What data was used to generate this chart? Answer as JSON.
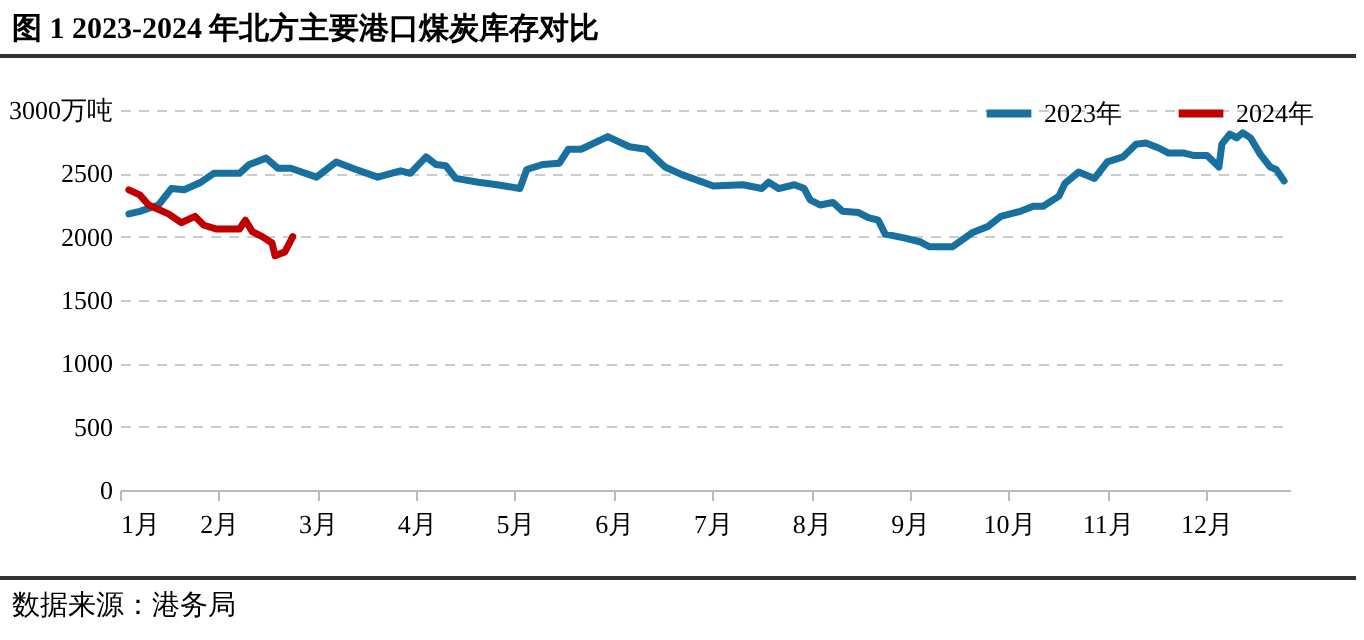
{
  "chart_data": {
    "type": "line",
    "title": "图 1 2023-2024 年北方主要港口煤炭库存对比",
    "annotations": [
      "数据来源：港务局"
    ],
    "series": [
      {
        "name": "2023年",
        "color": "#17709e",
        "x": [
          1.09,
          1.2,
          1.39,
          1.52,
          1.65,
          1.82,
          1.95,
          2.21,
          2.31,
          2.48,
          2.6,
          2.73,
          2.99,
          3.19,
          3.39,
          3.61,
          3.84,
          3.94,
          4.1,
          4.2,
          4.3,
          4.4,
          4.63,
          4.82,
          5.05,
          5.12,
          5.28,
          5.45,
          5.54,
          5.67,
          5.94,
          6.16,
          6.33,
          6.52,
          6.69,
          7.01,
          7.31,
          7.5,
          7.57,
          7.67,
          7.83,
          7.93,
          7.99,
          8.09,
          8.22,
          8.32,
          8.48,
          8.58,
          8.68,
          8.75,
          8.94,
          9.1,
          9.2,
          9.43,
          9.63,
          9.79,
          9.92,
          10.12,
          10.25,
          10.35,
          10.51,
          10.57,
          10.71,
          10.87,
          11.0,
          11.16,
          11.29,
          11.39,
          11.52,
          11.62,
          11.78,
          11.88,
          12.01,
          12.13,
          12.16,
          12.24,
          12.31,
          12.37,
          12.45,
          12.55,
          12.65,
          12.71,
          12.79
        ],
        "values": [
          2180,
          2200,
          2250,
          2380,
          2370,
          2430,
          2500,
          2500,
          2570,
          2620,
          2540,
          2540,
          2470,
          2590,
          2530,
          2470,
          2520,
          2500,
          2630,
          2570,
          2560,
          2460,
          2430,
          2410,
          2380,
          2530,
          2570,
          2580,
          2690,
          2690,
          2790,
          2710,
          2690,
          2550,
          2490,
          2400,
          2410,
          2380,
          2430,
          2380,
          2410,
          2380,
          2290,
          2250,
          2270,
          2200,
          2190,
          2150,
          2130,
          2020,
          1990,
          1960,
          1920,
          1920,
          2030,
          2080,
          2160,
          2200,
          2240,
          2240,
          2320,
          2420,
          2510,
          2460,
          2590,
          2630,
          2730,
          2740,
          2700,
          2660,
          2660,
          2640,
          2640,
          2550,
          2730,
          2810,
          2780,
          2820,
          2780,
          2650,
          2550,
          2530,
          2440
        ]
      },
      {
        "name": "2024年",
        "color": "#c00000",
        "x": [
          1.09,
          1.2,
          1.29,
          1.49,
          1.62,
          1.76,
          1.85,
          1.98,
          2.21,
          2.27,
          2.34,
          2.44,
          2.54,
          2.57,
          2.67,
          2.75
        ],
        "values": [
          2370,
          2330,
          2250,
          2180,
          2110,
          2160,
          2090,
          2060,
          2060,
          2130,
          2040,
          2000,
          1950,
          1850,
          1880,
          2000
        ]
      }
    ],
    "xlim": [
      1,
      12.85
    ],
    "xticks": [
      {
        "value": 1,
        "label": "1月"
      },
      {
        "value": 2,
        "label": "2月"
      },
      {
        "value": 3,
        "label": "3月"
      },
      {
        "value": 4,
        "label": "4月"
      },
      {
        "value": 5,
        "label": "5月"
      },
      {
        "value": 6,
        "label": "6月"
      },
      {
        "value": 7,
        "label": "7月"
      },
      {
        "value": 8,
        "label": "8月"
      },
      {
        "value": 9,
        "label": "9月"
      },
      {
        "value": 10,
        "label": "10月"
      },
      {
        "value": 11,
        "label": "11月"
      },
      {
        "value": 12,
        "label": "12月"
      }
    ],
    "ylim": [
      0,
      3000
    ],
    "yticks": [
      0,
      500,
      1000,
      1500,
      2000,
      2500,
      {
        "value": 3000,
        "label": "3000万吨"
      }
    ],
    "grid": "y",
    "legend": "top right"
  }
}
